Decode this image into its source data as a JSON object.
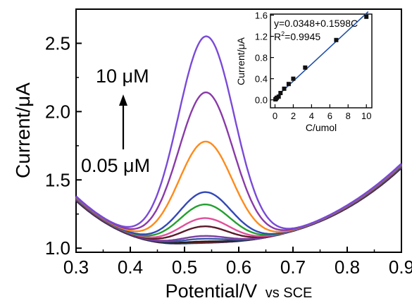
{
  "chart_data": [
    {
      "type": "line",
      "xlabel": "Potential/V",
      "xlabel_suffix": "vs SCE",
      "ylabel": "Current/μA",
      "xlim": [
        0.3,
        0.9
      ],
      "ylim": [
        0.97,
        2.75
      ],
      "x_ticks": [
        "0.3",
        "0.4",
        "0.5",
        "0.6",
        "0.7",
        "0.8",
        "0.9"
      ],
      "y_ticks": [
        "1.0",
        "1.5",
        "2.0",
        "2.5"
      ],
      "annotations": {
        "high": "10 μM",
        "low": "0.05 μM"
      },
      "grid": false,
      "series": [
        {
          "color": "#1f3f7a",
          "peak": 1.04
        },
        {
          "color": "#8b1a1a",
          "peak": 1.045
        },
        {
          "color": "#222222",
          "peak": 1.05
        },
        {
          "color": "#3a56a8",
          "peak": 1.07
        },
        {
          "color": "#7a3fa0",
          "peak": 1.09
        },
        {
          "color": "#5a1a2a",
          "peak": 1.16
        },
        {
          "color": "#e0509a",
          "peak": 1.22
        },
        {
          "color": "#22a030",
          "peak": 1.32
        },
        {
          "color": "#3348b8",
          "peak": 1.41
        },
        {
          "color": "#ff8a1a",
          "peak": 1.78
        },
        {
          "color": "#8a3aa8",
          "peak": 2.14
        },
        {
          "color": "#7a4ad8",
          "peak": 2.55
        }
      ]
    },
    {
      "type": "scatter",
      "inset": true,
      "xlabel": "C/umol",
      "ylabel": "Current/μA",
      "xlim": [
        -0.5,
        10.6
      ],
      "ylim": [
        -0.15,
        1.62
      ],
      "x_ticks": [
        "0",
        "2",
        "4",
        "6",
        "8",
        "10"
      ],
      "y_ticks": [
        "0.0",
        "0.4",
        "0.8",
        "1.2",
        "1.6"
      ],
      "equation": "y=0.0348+0.1598C",
      "r2_label": "R",
      "r2_value": "=0.9945",
      "fit": {
        "intercept": 0.0348,
        "slope": 0.1598
      },
      "x": [
        0.05,
        0.1,
        0.2,
        0.4,
        0.6,
        1.0,
        1.5,
        2.0,
        3.3,
        6.7,
        10.0
      ],
      "y": [
        0.01,
        0.02,
        0.04,
        0.06,
        0.13,
        0.21,
        0.3,
        0.4,
        0.61,
        1.13,
        1.57
      ]
    }
  ]
}
